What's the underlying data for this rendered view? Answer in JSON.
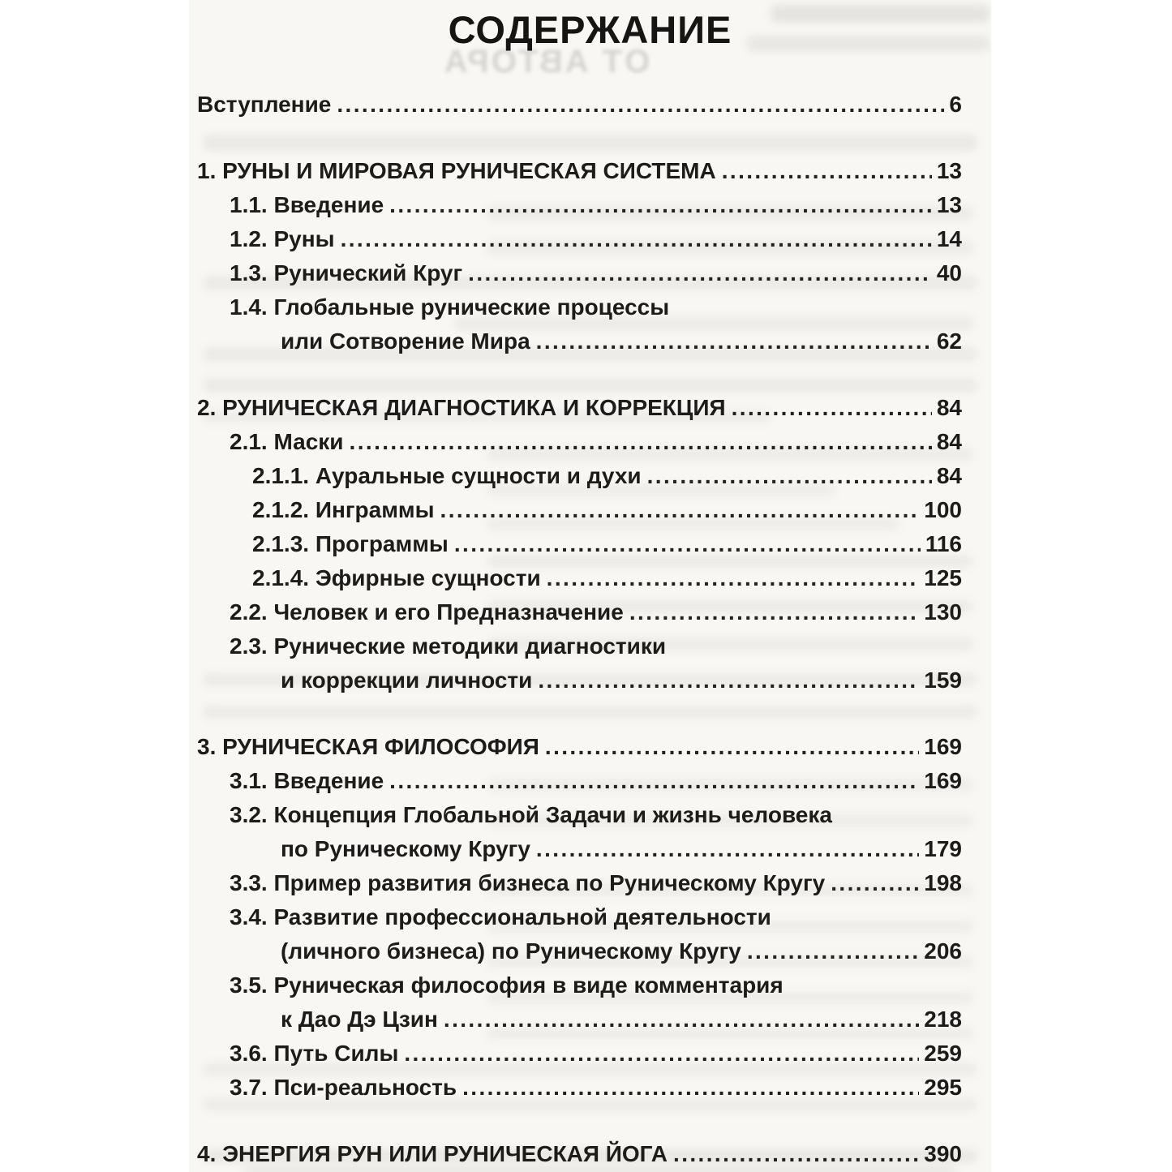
{
  "page": {
    "title": "СОДЕРЖАНИЕ"
  },
  "bleedthrough": {
    "mirrored_heading": "ОТ АВТОРА"
  },
  "toc": {
    "rows": [
      {
        "text": "Вступление",
        "page": "6",
        "indent": 0,
        "lead": true
      },
      {
        "text": "1. РУНЫ И МИРОВАЯ РУНИЧЕСКАЯ СИСТЕМА",
        "page": "13",
        "indent": 0,
        "section": true,
        "gap": true
      },
      {
        "text": "1.1. Введение",
        "page": "13",
        "indent": 1
      },
      {
        "text": "1.2. Руны",
        "page": "14",
        "indent": 1
      },
      {
        "text": "1.3. Рунический Круг",
        "page": "40",
        "indent": 1
      },
      {
        "text": "1.4. Глобальные рунические процессы",
        "page": null,
        "indent": 1
      },
      {
        "text": "или Сотворение Мира",
        "page": "62",
        "indent": 3
      },
      {
        "text": "2. РУНИЧЕСКАЯ ДИАГНОСТИКА И КОРРЕКЦИЯ",
        "page": "84",
        "indent": 0,
        "section": true,
        "gap": true
      },
      {
        "text": "2.1. Маски",
        "page": "84",
        "indent": 1
      },
      {
        "text": "2.1.1. Ауральные сущности и духи",
        "page": "84",
        "indent": 2
      },
      {
        "text": "2.1.2. Инграммы",
        "page": "100",
        "indent": 2
      },
      {
        "text": "2.1.3. Программы",
        "page": "116",
        "indent": 2
      },
      {
        "text": "2.1.4. Эфирные сущности",
        "page": "125",
        "indent": 2
      },
      {
        "text": "2.2. Человек и его Предназначение",
        "page": "130",
        "indent": 1
      },
      {
        "text": "2.3. Рунические методики диагностики",
        "page": null,
        "indent": 1
      },
      {
        "text": "и коррекции личности",
        "page": "159",
        "indent": 3
      },
      {
        "text": "3. РУНИЧЕСКАЯ ФИЛОСОФИЯ",
        "page": "169",
        "indent": 0,
        "section": true,
        "gap": true
      },
      {
        "text": "3.1. Введение",
        "page": "169",
        "indent": 1
      },
      {
        "text": "3.2. Концепция Глобальной Задачи и жизнь человека",
        "page": null,
        "indent": 1
      },
      {
        "text": "по Руническому Кругу",
        "page": "179",
        "indent": 3
      },
      {
        "text": "3.3. Пример развития бизнеса по Руническому Кругу",
        "page": "198",
        "indent": 1
      },
      {
        "text": "3.4. Развитие профессиональной деятельности",
        "page": null,
        "indent": 1
      },
      {
        "text": "(личного бизнеса) по Руническому Кругу",
        "page": "206",
        "indent": 3
      },
      {
        "text": "3.5. Руническая философия в виде комментария",
        "page": null,
        "indent": 1
      },
      {
        "text": "к Дао Дэ Цзин",
        "page": "218",
        "indent": 3
      },
      {
        "text": "3.6. Путь Силы",
        "page": "259",
        "indent": 1
      },
      {
        "text": "3.7. Пси-реальность",
        "page": "295",
        "indent": 1
      },
      {
        "text": "4.  ЭНЕРГИЯ РУН ИЛИ РУНИЧЕСКАЯ ЙОГА",
        "page": "390",
        "indent": 0,
        "section": true,
        "gap": true
      }
    ]
  }
}
